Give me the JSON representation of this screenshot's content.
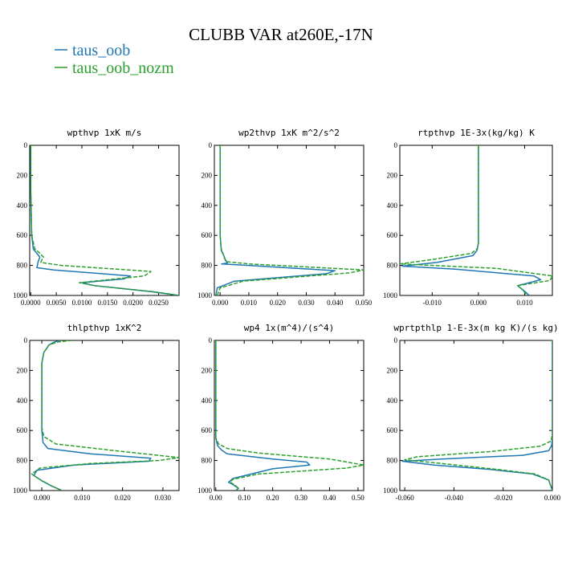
{
  "figure": {
    "title": "CLUBB VAR at260E,-17N"
  },
  "legend": [
    {
      "label": "taus_oob",
      "color": "#1f77b4",
      "dash": "solid"
    },
    {
      "label": "taus_oob_nozm",
      "color": "#2ca02c",
      "dash": "dashed"
    }
  ],
  "chart_data": [
    {
      "type": "line",
      "title": "wpthvp  1xK m/s",
      "xlim": [
        -0.0002,
        0.029
      ],
      "ylim": [
        1000,
        0
      ],
      "xticks": [
        0.0,
        0.005,
        0.01,
        0.015,
        0.02,
        0.025
      ],
      "xtick_labels": [
        "0.0000",
        "0.0050",
        "0.0100",
        "0.0150",
        "0.0200",
        "0.0250"
      ],
      "yticks": [
        0,
        200,
        400,
        600,
        800,
        1000
      ],
      "series": [
        {
          "name": "taus_oob",
          "x": [
            0.0,
            0.0,
            0.0002,
            0.0005,
            0.0012,
            0.0018,
            0.0015,
            0.0012,
            0.0045,
            0.0195,
            0.0182,
            0.01,
            0.0125,
            0.0235,
            0.029
          ],
          "y": [
            0,
            300,
            600,
            690,
            720,
            745,
            770,
            815,
            830,
            870,
            890,
            915,
            935,
            975,
            1000
          ]
        },
        {
          "name": "taus_oob_nozm",
          "x": [
            0.0,
            0.0,
            0.0002,
            0.0008,
            0.0018,
            0.0025,
            0.0022,
            0.002,
            0.006,
            0.0235,
            0.0222,
            0.0095,
            0.0125,
            0.024,
            0.029
          ],
          "y": [
            0,
            300,
            600,
            690,
            720,
            745,
            760,
            780,
            800,
            840,
            870,
            915,
            935,
            975,
            1000
          ]
        }
      ]
    },
    {
      "type": "line",
      "title": "wp2thvp  1xK m^2/s^2",
      "xlim": [
        -0.002,
        0.05
      ],
      "ylim": [
        1000,
        0
      ],
      "xticks": [
        0.0,
        0.01,
        0.02,
        0.03,
        0.04,
        0.05
      ],
      "xtick_labels": [
        "0.000",
        "0.010",
        "0.020",
        "0.030",
        "0.040",
        "0.050"
      ],
      "yticks": [
        0,
        200,
        400,
        600,
        800,
        1000
      ],
      "series": [
        {
          "name": "taus_oob",
          "x": [
            0.0,
            0.0,
            0.0004,
            0.0012,
            0.0018,
            0.0025,
            0.0005,
            0.01,
            0.04,
            0.037,
            0.005,
            -0.001,
            -0.0015
          ],
          "y": [
            0,
            600,
            700,
            730,
            760,
            785,
            790,
            800,
            835,
            855,
            905,
            950,
            1000
          ]
        },
        {
          "name": "taus_oob_nozm",
          "x": [
            0.0,
            0.0,
            0.0004,
            0.001,
            0.0015,
            0.002,
            0.01,
            0.05,
            0.045,
            0.008,
            0.0,
            -0.001
          ],
          "y": [
            0,
            600,
            690,
            720,
            750,
            775,
            790,
            830,
            850,
            905,
            950,
            1000
          ]
        }
      ]
    },
    {
      "type": "line",
      "title": "rtpthvp  1E-3x(kg/kg) K",
      "xlim": [
        -0.017,
        0.016
      ],
      "ylim": [
        1000,
        0
      ],
      "xticks": [
        -0.01,
        0.0,
        0.01
      ],
      "xtick_labels": [
        "-0.010",
        "0.000",
        "0.010"
      ],
      "yticks": [
        0,
        200,
        400,
        600,
        800,
        1000
      ],
      "series": [
        {
          "name": "taus_oob",
          "x": [
            0.0,
            0.0,
            -0.0003,
            -0.0012,
            -0.009,
            -0.0165,
            -0.005,
            0.012,
            0.0135,
            0.0085,
            0.0095,
            0.011
          ],
          "y": [
            0,
            650,
            700,
            735,
            780,
            805,
            825,
            870,
            895,
            935,
            960,
            1000
          ]
        },
        {
          "name": "taus_oob_nozm",
          "x": [
            0.0,
            0.0,
            -0.0003,
            -0.0015,
            -0.011,
            -0.017,
            0.004,
            0.016,
            0.0155,
            0.0085,
            0.0095,
            0.0105
          ],
          "y": [
            0,
            650,
            690,
            720,
            765,
            790,
            820,
            870,
            900,
            935,
            960,
            1000
          ]
        }
      ]
    },
    {
      "type": "line",
      "title": "thlpthvp  1xK^2",
      "xlim": [
        -0.003,
        0.034
      ],
      "ylim": [
        1000,
        0
      ],
      "xticks": [
        0.0,
        0.01,
        0.02,
        0.03
      ],
      "xtick_labels": [
        "0.000",
        "0.010",
        "0.020",
        "0.030"
      ],
      "yticks": [
        0,
        200,
        400,
        600,
        800,
        1000
      ],
      "series": [
        {
          "name": "taus_oob",
          "x": [
            0.0045,
            0.003,
            0.0018,
            0.0005,
            0.0,
            0.0,
            0.0003,
            0.0015,
            0.012,
            0.027,
            0.0265,
            0.008,
            -0.0012,
            -0.002,
            0.0,
            0.0025,
            0.005
          ],
          "y": [
            0,
            12,
            30,
            80,
            150,
            600,
            680,
            720,
            755,
            785,
            805,
            830,
            865,
            900,
            935,
            970,
            1000
          ]
        },
        {
          "name": "taus_oob_nozm",
          "x": [
            0.0075,
            0.004,
            0.0018,
            0.0005,
            0.0,
            0.0,
            0.0005,
            0.0035,
            0.02,
            0.034,
            0.029,
            0.012,
            -0.0005,
            -0.0025,
            0.0,
            0.0025,
            0.005
          ],
          "y": [
            0,
            10,
            30,
            80,
            150,
            580,
            640,
            690,
            740,
            780,
            800,
            820,
            850,
            890,
            935,
            970,
            1000
          ]
        }
      ]
    },
    {
      "type": "line",
      "title": "wp4  1x(m^4)/(s^4)",
      "xlim": [
        -0.005,
        0.52
      ],
      "ylim": [
        1000,
        0
      ],
      "xticks": [
        0.0,
        0.1,
        0.2,
        0.3,
        0.4,
        0.5
      ],
      "xtick_labels": [
        "0.00",
        "0.10",
        "0.20",
        "0.30",
        "0.40",
        "0.50"
      ],
      "yticks": [
        0,
        200,
        400,
        600,
        800,
        1000
      ],
      "series": [
        {
          "name": "taus_oob",
          "x": [
            0.0,
            0.0,
            0.006,
            0.02,
            0.04,
            0.2,
            0.32,
            0.33,
            0.2,
            0.06,
            0.045,
            0.06,
            0.08,
            0.07
          ],
          "y": [
            0,
            650,
            700,
            730,
            755,
            790,
            810,
            830,
            855,
            920,
            945,
            960,
            985,
            1000
          ]
        },
        {
          "name": "taus_oob_nozm",
          "x": [
            0.0,
            0.0,
            0.01,
            0.04,
            0.15,
            0.4,
            0.52,
            0.46,
            0.15,
            0.06,
            0.05,
            0.065,
            0.08,
            0.07
          ],
          "y": [
            0,
            650,
            690,
            720,
            750,
            790,
            830,
            850,
            890,
            925,
            945,
            960,
            985,
            1000
          ]
        }
      ]
    },
    {
      "type": "line",
      "title": "wprtpthlp  1-E-3x(m kg K)/(s kg)",
      "xlim": [
        -0.062,
        0.0
      ],
      "ylim": [
        1000,
        0
      ],
      "xticks": [
        -0.06,
        -0.04,
        -0.02,
        0.0
      ],
      "xtick_labels": [
        "-0.060",
        "-0.040",
        "-0.020",
        "0.000"
      ],
      "yticks": [
        0,
        200,
        400,
        600,
        800,
        1000
      ],
      "series": [
        {
          "name": "taus_oob",
          "x": [
            0.0,
            0.0,
            -0.0003,
            -0.0015,
            -0.012,
            -0.045,
            -0.061,
            -0.048,
            -0.025,
            -0.008,
            -0.0015,
            0.0
          ],
          "y": [
            0,
            650,
            700,
            735,
            765,
            790,
            805,
            830,
            860,
            890,
            930,
            1000
          ]
        },
        {
          "name": "taus_oob_nozm",
          "x": [
            0.0,
            0.0,
            -0.0005,
            -0.005,
            -0.025,
            -0.055,
            -0.06,
            -0.045,
            -0.022,
            -0.007,
            -0.0015,
            0.0
          ],
          "y": [
            0,
            620,
            670,
            705,
            740,
            775,
            795,
            820,
            860,
            890,
            930,
            1000
          ]
        }
      ]
    }
  ]
}
